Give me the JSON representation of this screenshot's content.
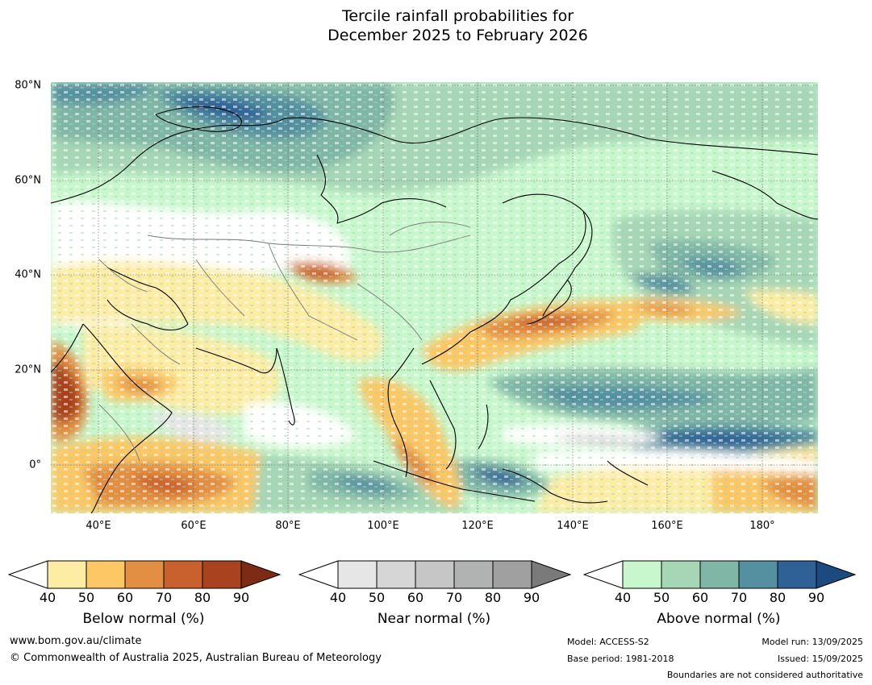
{
  "title_line1": "Tercile rainfall probabilities for",
  "title_line2": "December 2025 to February 2026",
  "lat_labels": [
    "80°N",
    "60°N",
    "40°N",
    "20°N",
    "0°"
  ],
  "lon_labels": [
    "40°E",
    "60°E",
    "80°E",
    "100°E",
    "120°E",
    "140°E",
    "160°E",
    "180°"
  ],
  "colorbars": [
    {
      "title": "Below normal (%)",
      "ticks": [
        "40",
        "50",
        "60",
        "70",
        "80",
        "90"
      ],
      "colors": [
        "#fdeca3",
        "#fdc765",
        "#e38f43",
        "#c9612e",
        "#a9431f",
        "#7d2b15"
      ]
    },
    {
      "title": "Near normal (%)",
      "ticks": [
        "40",
        "50",
        "60",
        "70",
        "80",
        "90"
      ],
      "colors": [
        "#e6e6e6",
        "#d6d6d6",
        "#c6c6c6",
        "#b1b3b2",
        "#a0a0a0",
        "#7a7a7a"
      ]
    },
    {
      "title": "Above normal (%)",
      "ticks": [
        "40",
        "50",
        "60",
        "70",
        "80",
        "90"
      ],
      "colors": [
        "#c8f7cd",
        "#a6d6b5",
        "#7fb6a6",
        "#5490a0",
        "#2f6196",
        "#1a4a7e"
      ]
    }
  ],
  "footer": {
    "website": "www.bom.gov.au/climate",
    "copyright": "© Commonwealth of Australia 2025, Australian Bureau of Meteorology",
    "model": "Model: ACCESS-S2",
    "base_period": "Base period: 1981-2018",
    "model_run": "Model run: 13/09/2025",
    "issued": "Issued: 15/09/2025",
    "disclaimer": "Boundaries are not considered authoritative"
  }
}
